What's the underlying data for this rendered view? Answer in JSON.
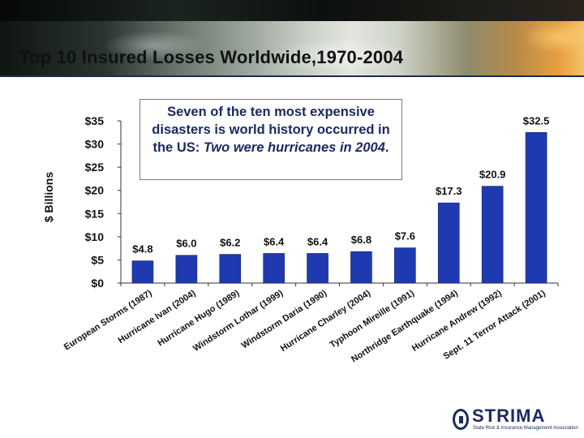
{
  "slide": {
    "title": "Top 10 Insured Losses Worldwide,1970-2004"
  },
  "callout": {
    "line1": "Seven of the ten most expensive disasters is world history occurred in the US: ",
    "line2": "Two were hurricanes in 2004",
    "end": "."
  },
  "logo": {
    "name": "STRIMA",
    "tagline": "State Risk & Insurance Management Association"
  },
  "chart_data": {
    "type": "bar",
    "title": "",
    "xlabel": "",
    "ylabel": "$ Billions",
    "ylim": [
      0,
      35
    ],
    "yticks": [
      0,
      5,
      10,
      15,
      20,
      25,
      30,
      35
    ],
    "ytick_labels": [
      "$0",
      "$5",
      "$10",
      "$15",
      "$20",
      "$25",
      "$30",
      "$35"
    ],
    "categories": [
      "European Storms (1987)",
      "Hurricane Ivan (2004)",
      "Hurricane Hugo (1989)",
      "Windstorm Lothar (1999)",
      "Windstorm Daria (1990)",
      "Hurricane Charley (2004)",
      "Typhoon Mireille (1991)",
      "Northridge Earthquake (1994)",
      "Hurricane Andrew (1992)",
      "Sept. 11 Terror Attack (2001)"
    ],
    "values": [
      4.8,
      6.0,
      6.2,
      6.4,
      6.4,
      6.8,
      7.6,
      17.3,
      20.9,
      32.5
    ],
    "value_labels": [
      "$4.8",
      "$6.0",
      "$6.2",
      "$6.4",
      "$6.4",
      "$6.8",
      "$7.6",
      "$17.3",
      "$20.9",
      "$32.5"
    ],
    "bar_color": "#1f3ab0",
    "grid": false
  }
}
